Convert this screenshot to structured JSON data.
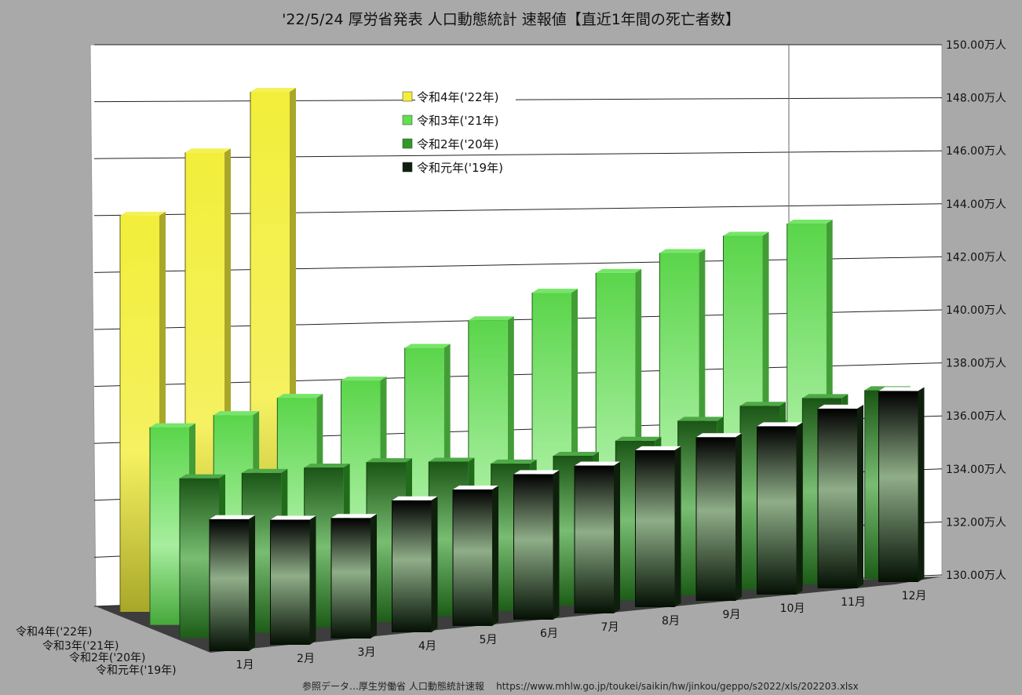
{
  "title": "'22/5/24 厚労省発表 人口動態統計 速報値【直近1年間の死亡者数】",
  "footer": "参照データ…厚生労働省 人口動態統計速報    https://www.mhlw.go.jp/toukei/saikin/hw/jinkou/geppo/s2022/xls/202203.xlsx",
  "chart_data": {
    "type": "bar",
    "subtype": "3d-clustered-column",
    "categories": [
      "1月",
      "2月",
      "3月",
      "4月",
      "5月",
      "6月",
      "7月",
      "8月",
      "9月",
      "10月",
      "11月",
      "12月"
    ],
    "y_axis": {
      "min": 130,
      "max": 150,
      "step": 2,
      "tick_labels": [
        "130.00万人",
        "132.00万人",
        "134.00万人",
        "136.00万人",
        "138.00万人",
        "140.00万人",
        "142.00万人",
        "144.00万人",
        "146.00万人",
        "148.00万人",
        "150.00万人"
      ],
      "side": "right"
    },
    "grid": true,
    "legend_position": "top-center",
    "series": [
      {
        "name": "令和4年('22年)",
        "color": "#f2ee3a",
        "values": [
          144.6,
          146.8,
          148.9,
          null,
          null,
          null,
          null,
          null,
          null,
          null,
          null,
          null
        ]
      },
      {
        "name": "令和3年('21年)",
        "color": "#5fe04e",
        "values": [
          137.7,
          138.0,
          138.5,
          139.0,
          140.1,
          141.0,
          141.9,
          142.5,
          143.1,
          143.6,
          143.9,
          null
        ]
      },
      {
        "name": "令和2年('20年)",
        "color": "#2f9a26",
        "values": [
          136.6,
          136.6,
          136.6,
          136.6,
          136.4,
          136.1,
          136.2,
          136.6,
          137.2,
          137.6,
          137.7,
          137.8
        ]
      },
      {
        "name": "令和元年('19年)",
        "color": "#0e200c",
        "values": [
          135.8,
          135.5,
          135.3,
          135.8,
          136.0,
          136.4,
          136.5,
          136.9,
          137.2,
          137.4,
          137.9,
          138.4
        ]
      }
    ]
  }
}
